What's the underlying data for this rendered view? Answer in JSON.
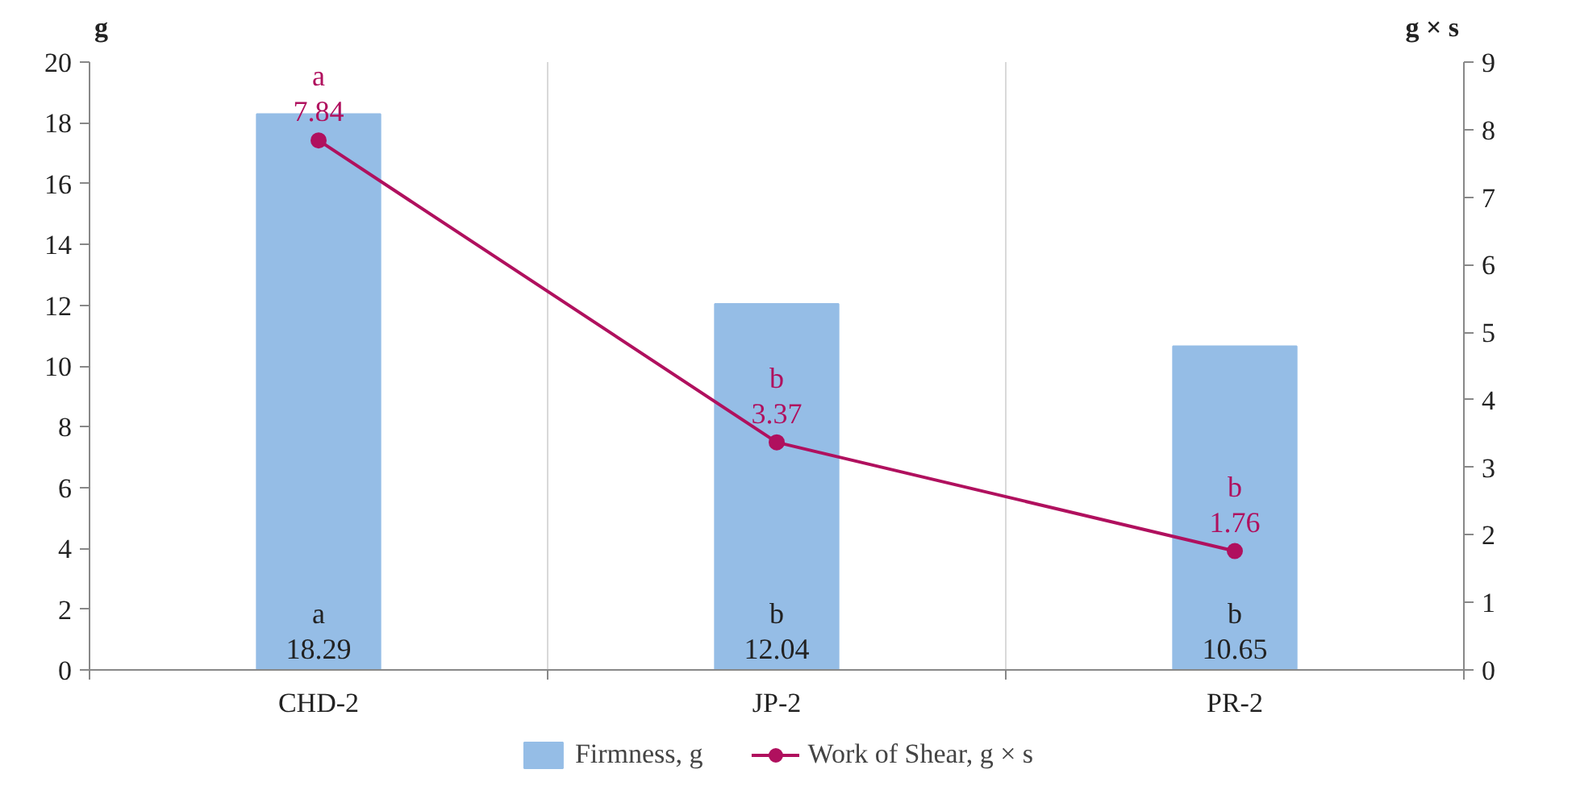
{
  "chart_data": {
    "type": "bar",
    "categories": [
      "CHD-2",
      "JP-2",
      "PR-2"
    ],
    "ylabel": "g",
    "y2label": "g × s",
    "ylim": [
      0,
      20
    ],
    "yticks": [
      0,
      2,
      4,
      6,
      8,
      10,
      12,
      14,
      16,
      18,
      20
    ],
    "y2lim": [
      0,
      9
    ],
    "y2ticks": [
      0,
      1,
      2,
      3,
      4,
      5,
      6,
      7,
      8,
      9
    ],
    "series": [
      {
        "name": "Firmness, g",
        "color": "#95bde6",
        "values": [
          18.29,
          12.04,
          10.65
        ],
        "value_labels": [
          "a\n18.29",
          "b\n12.04",
          "b\n10.65"
        ]
      },
      {
        "name": "Work of Shear, g × s",
        "type": "line",
        "axis": "y2",
        "color": "#b0105e",
        "marker": "circle",
        "values": [
          7.84,
          3.37,
          1.76
        ],
        "value_labels": [
          "a\n7.84",
          "b\n3.37",
          "b\n1.76"
        ]
      }
    ],
    "grid": "x",
    "legend": "bottom"
  }
}
